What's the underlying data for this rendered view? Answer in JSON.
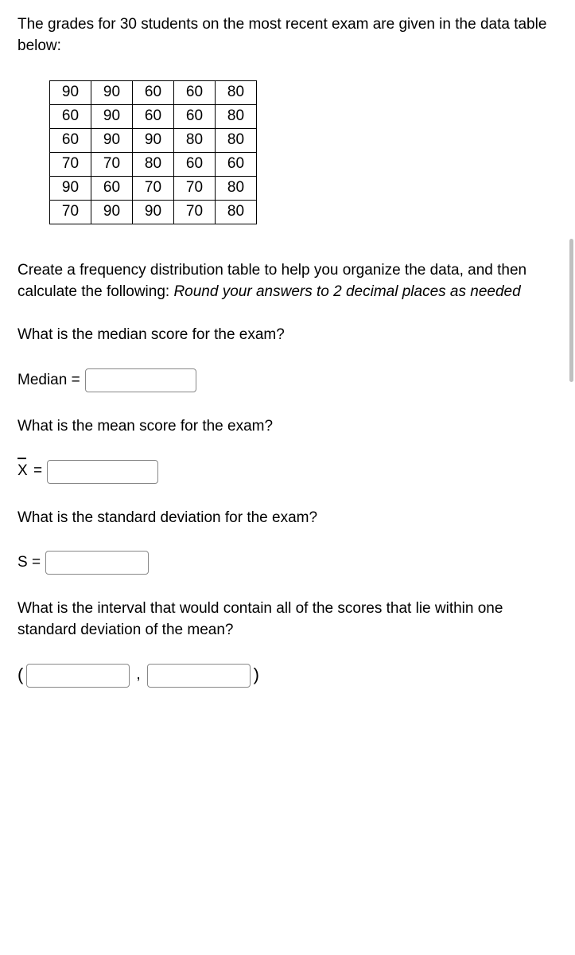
{
  "intro": "The grades for 30 students on the most recent exam are given in the data table below:",
  "table": {
    "rows": [
      [
        90,
        90,
        60,
        60,
        80
      ],
      [
        60,
        90,
        60,
        60,
        80
      ],
      [
        60,
        90,
        90,
        80,
        80
      ],
      [
        70,
        70,
        80,
        60,
        60
      ],
      [
        90,
        60,
        70,
        70,
        80
      ],
      [
        70,
        90,
        90,
        70,
        80
      ]
    ]
  },
  "instructions_pre": "Create a frequency distribution table to help you organize the data, and then calculate the following:    ",
  "instructions_italic": "Round your answers to 2 decimal places as needed",
  "q_median": "What is the median score for the exam?",
  "label_median": "Median =",
  "q_mean": "What is the mean score for the exam?",
  "label_mean_suffix": "=",
  "q_sd": "What is the standard deviation for the exam?",
  "label_sd": "S =",
  "q_interval": "What is the interval that would contain all of the scores that lie within one standard deviation of the mean?",
  "paren_open": "(",
  "paren_close": ")",
  "comma": ","
}
